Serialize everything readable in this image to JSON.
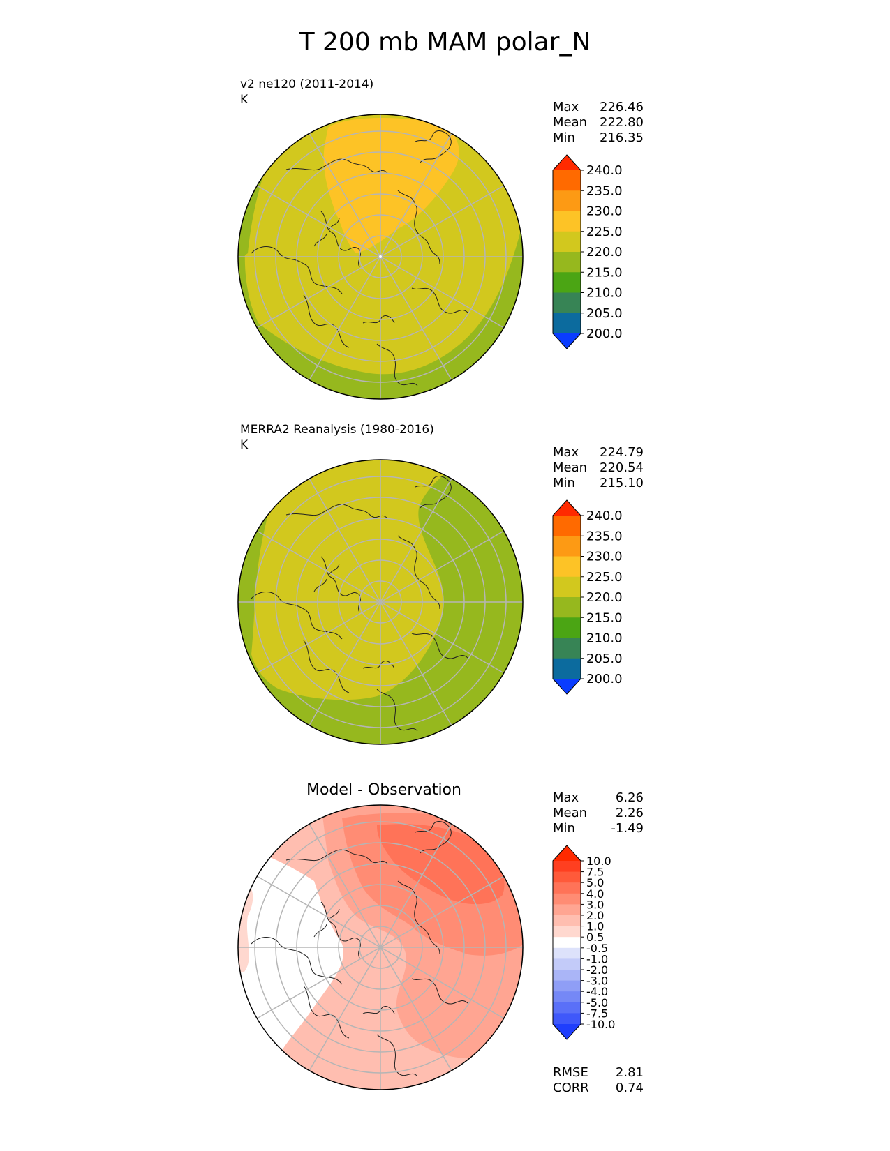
{
  "figure": {
    "title": "T 200 mb MAM polar_N"
  },
  "panels": [
    {
      "name": "test",
      "label": "v2 ne120 (2011-2014)",
      "units": "K",
      "stats": {
        "max_label": "Max",
        "max": "226.46",
        "mean_label": "Mean",
        "mean": "222.80",
        "min_label": "Min",
        "min": "216.35"
      },
      "colorbar": {
        "ticks": [
          "240.0",
          "235.0",
          "230.0",
          "225.0",
          "220.0",
          "215.0",
          "210.0",
          "205.0",
          "200.0"
        ],
        "colors": [
          "#ff2a00",
          "#ff6a00",
          "#fd9a14",
          "#fdc326",
          "#d2c81e",
          "#96b81e",
          "#4ba514",
          "#378455",
          "#0c6b9e",
          "#0a3cff"
        ]
      }
    },
    {
      "name": "reference",
      "label": "MERRA2 Reanalysis (1980-2016)",
      "units": "K",
      "stats": {
        "max_label": "Max",
        "max": "224.79",
        "mean_label": "Mean",
        "mean": "220.54",
        "min_label": "Min",
        "min": "215.10"
      },
      "colorbar": {
        "ticks": [
          "240.0",
          "235.0",
          "230.0",
          "225.0",
          "220.0",
          "215.0",
          "210.0",
          "205.0",
          "200.0"
        ],
        "colors": [
          "#ff2a00",
          "#ff6a00",
          "#fd9a14",
          "#fdc326",
          "#d2c81e",
          "#96b81e",
          "#4ba514",
          "#378455",
          "#0c6b9e",
          "#0a3cff"
        ]
      }
    },
    {
      "name": "difference",
      "title": "Model - Observation",
      "stats": {
        "max_label": "Max",
        "max": "6.26",
        "mean_label": "Mean",
        "mean": "2.26",
        "min_label": "Min",
        "min": "-1.49"
      },
      "metrics": {
        "rmse_label": "RMSE",
        "rmse": "2.81",
        "corr_label": "CORR",
        "corr": "0.74"
      },
      "colorbar": {
        "ticks": [
          "10.0",
          "7.5",
          "5.0",
          "4.0",
          "3.0",
          "2.0",
          "1.0",
          "0.5",
          "-0.5",
          "-1.0",
          "-2.0",
          "-3.0",
          "-4.0",
          "-5.0",
          "-7.5",
          "-10.0"
        ],
        "colors": [
          "#ff2a00",
          "#ff3f20",
          "#ff5a3a",
          "#ff7358",
          "#ff8c74",
          "#ffa592",
          "#ffbeb0",
          "#ffd8cf",
          "#ffffff",
          "#dde2fb",
          "#c3cbf9",
          "#aab5f7",
          "#8f9ef6",
          "#7588f6",
          "#5a70f8",
          "#3f58fa",
          "#1f3efd"
        ]
      }
    }
  ]
}
